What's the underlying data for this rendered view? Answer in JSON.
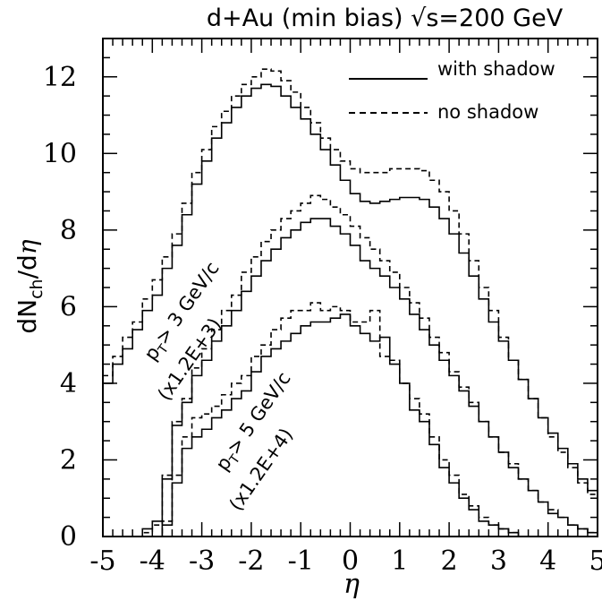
{
  "chart_data": {
    "type": "line",
    "title": "d+Au (min bias) √s=200 GeV",
    "xlabel": "η",
    "ylabel": "dN_ch/dη",
    "xlim": [
      -5,
      5
    ],
    "ylim": [
      0,
      13
    ],
    "xticks": [
      -5,
      -4,
      -3,
      -2,
      -1,
      0,
      1,
      2,
      3,
      4,
      5
    ],
    "xtick_labels": [
      "-5",
      "-4",
      "-3",
      "-2",
      "-1",
      "0",
      "1",
      "2",
      "3",
      "4",
      "5"
    ],
    "yticks": [
      0,
      2,
      4,
      6,
      8,
      10,
      12
    ],
    "ytick_labels": [
      "0",
      "2",
      "4",
      "6",
      "8",
      "10",
      "12"
    ],
    "grid": false,
    "legend": {
      "position": "top-right",
      "entries": [
        {
          "label": "with shadow",
          "style": "solid"
        },
        {
          "label": "no shadow",
          "style": "dashed"
        }
      ]
    },
    "annotations": [
      {
        "line1": "p_T > 3 GeV/c",
        "line2": "(x1.2E+3)"
      },
      {
        "line1": "p_T > 5 GeV/c",
        "line2": "(x1.2E+4)"
      }
    ],
    "bin_edges_start": -5.0,
    "bin_width": 0.2,
    "series": [
      {
        "group": "all",
        "style": "solid",
        "legend": "with shadow",
        "values": [
          4.0,
          4.5,
          4.9,
          5.4,
          5.9,
          6.3,
          7.0,
          7.6,
          8.4,
          9.2,
          9.8,
          10.4,
          10.8,
          11.2,
          11.5,
          11.7,
          11.8,
          11.75,
          11.5,
          11.2,
          10.9,
          10.5,
          10.1,
          9.7,
          9.3,
          8.95,
          8.75,
          8.7,
          8.75,
          8.8,
          8.85,
          8.85,
          8.8,
          8.6,
          8.3,
          7.9,
          7.4,
          6.8,
          6.2,
          5.6,
          5.1,
          4.6,
          4.1,
          3.6,
          3.1,
          2.7,
          2.3,
          1.9,
          1.5,
          1.2
        ]
      },
      {
        "group": "all",
        "style": "dashed",
        "legend": "no shadow",
        "values": [
          4.2,
          4.7,
          5.2,
          5.6,
          6.2,
          6.7,
          7.3,
          7.9,
          8.7,
          9.5,
          10.1,
          10.7,
          11.1,
          11.5,
          11.8,
          12.0,
          12.2,
          12.15,
          11.9,
          11.6,
          11.2,
          10.8,
          10.4,
          10.1,
          9.8,
          9.6,
          9.5,
          9.5,
          9.5,
          9.6,
          9.6,
          9.6,
          9.55,
          9.3,
          9.0,
          8.5,
          7.9,
          7.2,
          6.5,
          5.9,
          5.2,
          4.6,
          4.1,
          3.6,
          3.1,
          2.6,
          2.2,
          1.8,
          1.4,
          1.1
        ]
      },
      {
        "group": "pT>3 GeV/c (x1.2E+3)",
        "style": "solid",
        "legend": "",
        "values": [
          0,
          0,
          0,
          0,
          0.2,
          0.4,
          1.5,
          2.9,
          3.5,
          4.2,
          4.6,
          5.1,
          5.5,
          5.9,
          6.4,
          6.8,
          7.2,
          7.5,
          7.8,
          8.0,
          8.2,
          8.3,
          8.3,
          8.1,
          7.9,
          7.6,
          7.2,
          7.0,
          6.8,
          6.5,
          6.2,
          5.8,
          5.4,
          5.0,
          4.6,
          4.2,
          3.8,
          3.4,
          3.0,
          2.6,
          2.2,
          1.8,
          1.5,
          1.2,
          0.9,
          0.6,
          0.5,
          0.3,
          0.2,
          0.1
        ]
      },
      {
        "group": "pT>3 GeV/c (x1.2E+3)",
        "style": "dashed",
        "legend": "",
        "values": [
          0,
          0,
          0,
          0,
          0.1,
          0.3,
          1.6,
          3.0,
          3.6,
          4.4,
          4.9,
          5.4,
          5.9,
          6.3,
          6.9,
          7.3,
          7.7,
          8.0,
          8.3,
          8.5,
          8.7,
          8.9,
          8.8,
          8.6,
          8.4,
          8.1,
          7.8,
          7.5,
          7.2,
          6.9,
          6.5,
          6.1,
          5.7,
          5.2,
          4.8,
          4.3,
          3.9,
          3.5,
          3.0,
          2.6,
          2.2,
          1.9,
          1.5,
          1.2,
          0.9,
          0.7,
          0.5,
          0.3,
          0.2,
          0.1
        ]
      },
      {
        "group": "pT>5 GeV/c (x1.2E+4)",
        "style": "solid",
        "legend": "",
        "values": [
          0,
          0,
          0,
          0,
          0,
          0,
          0.3,
          1.4,
          2.3,
          2.6,
          2.8,
          3.1,
          3.3,
          3.6,
          3.8,
          4.3,
          4.7,
          4.9,
          5.1,
          5.3,
          5.5,
          5.6,
          5.6,
          5.7,
          5.8,
          5.5,
          5.3,
          5.1,
          5.2,
          4.5,
          4.0,
          3.3,
          3.0,
          2.4,
          1.8,
          1.4,
          1.0,
          0.7,
          0.4,
          0.3,
          0.2,
          0.1,
          0,
          0,
          0,
          0,
          0,
          0,
          0,
          0
        ]
      },
      {
        "group": "pT>5 GeV/c (x1.2E+4)",
        "style": "dashed",
        "legend": "",
        "values": [
          0,
          0,
          0,
          0,
          0,
          0,
          0.4,
          1.6,
          2.6,
          3.1,
          3.2,
          3.4,
          3.7,
          4.0,
          4.2,
          4.7,
          5.0,
          5.4,
          5.7,
          5.9,
          5.9,
          6.1,
          5.9,
          6.0,
          5.9,
          5.6,
          5.6,
          5.9,
          4.7,
          4.6,
          4.0,
          3.6,
          3.2,
          2.6,
          2.0,
          1.6,
          1.1,
          0.8,
          0.5,
          0.3,
          0.2,
          0.1,
          0,
          0,
          0,
          0,
          0,
          0,
          0,
          0
        ]
      }
    ]
  }
}
